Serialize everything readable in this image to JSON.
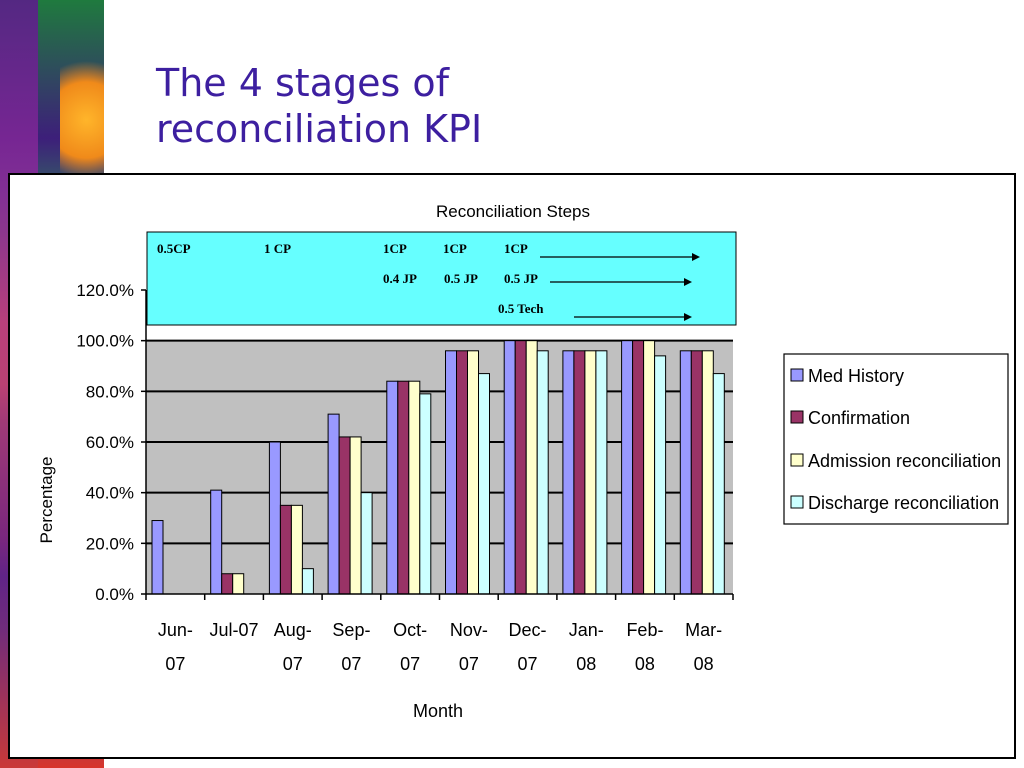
{
  "slide": {
    "title_line1": "The 4 stages of",
    "title_line2": "reconciliation KPI"
  },
  "colors": {
    "plot_bg": "#c0c0c0",
    "annotation_bg": "#66ffff",
    "series": [
      "#9999ff",
      "#993366",
      "#ffffcc",
      "#ccffff"
    ]
  },
  "chart_data": {
    "type": "bar",
    "title": "Reconciliation Steps",
    "xlabel": "Month",
    "ylabel": "Percentage",
    "ylim": [
      0,
      120
    ],
    "yticks": [
      "0.0%",
      "20.0%",
      "40.0%",
      "60.0%",
      "80.0%",
      "100.0%",
      "120.0%"
    ],
    "categories": [
      "Jun-07",
      "Jul-07",
      "Aug-07",
      "Sep-07",
      "Oct-07",
      "Nov-07",
      "Dec-07",
      "Jan-08",
      "Feb-08",
      "Mar-08"
    ],
    "category_labels": [
      [
        "Jun-",
        "07"
      ],
      [
        "Jul-07",
        ""
      ],
      [
        "Aug-",
        "07"
      ],
      [
        "Sep-",
        "07"
      ],
      [
        "Oct-",
        "07"
      ],
      [
        "Nov-",
        "07"
      ],
      [
        "Dec-",
        "07"
      ],
      [
        "Jan-",
        "08"
      ],
      [
        "Feb-",
        "08"
      ],
      [
        "Mar-",
        "08"
      ]
    ],
    "series": [
      {
        "name": "Med History",
        "values": [
          29,
          41,
          60,
          71,
          84,
          96,
          100,
          96,
          100,
          96
        ]
      },
      {
        "name": "Confirmation",
        "values": [
          0,
          8,
          35,
          62,
          84,
          96,
          100,
          96,
          100,
          96
        ]
      },
      {
        "name": "Admission reconciliation",
        "values": [
          0,
          8,
          35,
          62,
          84,
          96,
          100,
          96,
          100,
          96
        ]
      },
      {
        "name": "Discharge reconciliation",
        "values": [
          0,
          0,
          10,
          40,
          79,
          87,
          96,
          96,
          94,
          87
        ]
      }
    ],
    "legend_position": "right",
    "annotations": {
      "row1": [
        "0.5CP",
        "1 CP",
        "1CP",
        "1CP",
        "1CP"
      ],
      "row2": [
        "0.4 JP",
        "0.5 JP",
        "0.5 JP"
      ],
      "row3": [
        "0.5 Tech"
      ]
    }
  }
}
